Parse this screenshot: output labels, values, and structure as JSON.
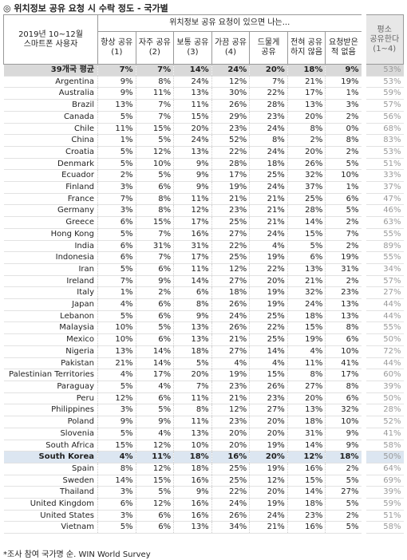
{
  "title": "◎ 위치정보 공유 요청 시 수락 정도 - 국가별",
  "header": {
    "period": "2019년 10~12월",
    "users": "스마트폰 사용자",
    "group_label": "위치정보 공유 요청이 있으면 나는...",
    "columns": [
      [
        "항상 공유",
        "(1)"
      ],
      [
        "자주 공유",
        "(2)"
      ],
      [
        "보통 공유",
        "(3)"
      ],
      [
        "가끔 공유",
        "(4)"
      ],
      [
        "드물게",
        "공유"
      ],
      [
        "전혀 공유",
        "하지 않음"
      ],
      [
        "요청받은",
        "적 없음"
      ]
    ],
    "summary": [
      "평소",
      "공유한다",
      "(1~4)"
    ]
  },
  "table": {
    "rows": [
      [
        "39개국 평균",
        "7%",
        "7%",
        "14%",
        "24%",
        "20%",
        "18%",
        "9%",
        "53%"
      ],
      [
        "Argentina",
        "9%",
        "8%",
        "24%",
        "12%",
        "7%",
        "21%",
        "19%",
        "53%"
      ],
      [
        "Australia",
        "9%",
        "11%",
        "13%",
        "30%",
        "22%",
        "17%",
        "1%",
        "59%"
      ],
      [
        "Brazil",
        "13%",
        "7%",
        "11%",
        "26%",
        "28%",
        "13%",
        "3%",
        "57%"
      ],
      [
        "Canada",
        "5%",
        "7%",
        "15%",
        "29%",
        "23%",
        "20%",
        "2%",
        "56%"
      ],
      [
        "Chile",
        "11%",
        "15%",
        "20%",
        "23%",
        "24%",
        "8%",
        "0%",
        "68%"
      ],
      [
        "China",
        "1%",
        "5%",
        "24%",
        "52%",
        "8%",
        "2%",
        "8%",
        "83%"
      ],
      [
        "Croatia",
        "5%",
        "12%",
        "13%",
        "22%",
        "24%",
        "20%",
        "2%",
        "53%"
      ],
      [
        "Denmark",
        "5%",
        "10%",
        "9%",
        "28%",
        "18%",
        "26%",
        "5%",
        "51%"
      ],
      [
        "Ecuador",
        "2%",
        "5%",
        "9%",
        "17%",
        "25%",
        "32%",
        "10%",
        "33%"
      ],
      [
        "Finland",
        "3%",
        "6%",
        "9%",
        "19%",
        "24%",
        "37%",
        "1%",
        "37%"
      ],
      [
        "France",
        "7%",
        "8%",
        "11%",
        "21%",
        "21%",
        "25%",
        "6%",
        "47%"
      ],
      [
        "Germany",
        "3%",
        "8%",
        "12%",
        "23%",
        "21%",
        "28%",
        "5%",
        "46%"
      ],
      [
        "Greece",
        "6%",
        "15%",
        "17%",
        "25%",
        "21%",
        "14%",
        "2%",
        "63%"
      ],
      [
        "Hong Kong",
        "5%",
        "7%",
        "16%",
        "27%",
        "24%",
        "15%",
        "7%",
        "55%"
      ],
      [
        "India",
        "6%",
        "31%",
        "31%",
        "22%",
        "4%",
        "5%",
        "2%",
        "89%"
      ],
      [
        "Indonesia",
        "6%",
        "7%",
        "17%",
        "25%",
        "19%",
        "6%",
        "19%",
        "55%"
      ],
      [
        "Iran",
        "5%",
        "6%",
        "11%",
        "12%",
        "22%",
        "13%",
        "31%",
        "34%"
      ],
      [
        "Ireland",
        "7%",
        "9%",
        "14%",
        "27%",
        "20%",
        "21%",
        "2%",
        "57%"
      ],
      [
        "Italy",
        "1%",
        "2%",
        "6%",
        "18%",
        "19%",
        "32%",
        "23%",
        "27%"
      ],
      [
        "Japan",
        "4%",
        "6%",
        "8%",
        "26%",
        "19%",
        "24%",
        "13%",
        "44%"
      ],
      [
        "Lebanon",
        "5%",
        "6%",
        "9%",
        "24%",
        "25%",
        "18%",
        "13%",
        "44%"
      ],
      [
        "Malaysia",
        "10%",
        "5%",
        "13%",
        "26%",
        "22%",
        "15%",
        "8%",
        "55%"
      ],
      [
        "Mexico",
        "10%",
        "6%",
        "13%",
        "21%",
        "25%",
        "19%",
        "6%",
        "50%"
      ],
      [
        "Nigeria",
        "13%",
        "14%",
        "18%",
        "27%",
        "14%",
        "4%",
        "10%",
        "72%"
      ],
      [
        "Pakistan",
        "21%",
        "14%",
        "5%",
        "4%",
        "4%",
        "11%",
        "41%",
        "44%"
      ],
      [
        "Palestinian Territories",
        "4%",
        "17%",
        "20%",
        "19%",
        "15%",
        "8%",
        "17%",
        "60%"
      ],
      [
        "Paraguay",
        "5%",
        "4%",
        "7%",
        "23%",
        "26%",
        "27%",
        "8%",
        "39%"
      ],
      [
        "Peru",
        "12%",
        "6%",
        "11%",
        "21%",
        "23%",
        "20%",
        "6%",
        "50%"
      ],
      [
        "Philippines",
        "3%",
        "5%",
        "8%",
        "12%",
        "27%",
        "13%",
        "32%",
        "28%"
      ],
      [
        "Poland",
        "9%",
        "9%",
        "11%",
        "23%",
        "20%",
        "18%",
        "10%",
        "52%"
      ],
      [
        "Slovenia",
        "5%",
        "4%",
        "13%",
        "20%",
        "20%",
        "31%",
        "9%",
        "41%"
      ],
      [
        "South Africa",
        "15%",
        "12%",
        "10%",
        "20%",
        "19%",
        "14%",
        "9%",
        "58%"
      ],
      [
        "South Korea",
        "4%",
        "11%",
        "18%",
        "16%",
        "20%",
        "12%",
        "18%",
        "50%"
      ],
      [
        "Spain",
        "8%",
        "12%",
        "18%",
        "25%",
        "19%",
        "16%",
        "2%",
        "64%"
      ],
      [
        "Sweden",
        "14%",
        "15%",
        "16%",
        "25%",
        "12%",
        "15%",
        "5%",
        "69%"
      ],
      [
        "Thailand",
        "3%",
        "5%",
        "9%",
        "22%",
        "20%",
        "14%",
        "27%",
        "39%"
      ],
      [
        "United Kingdom",
        "6%",
        "12%",
        "16%",
        "24%",
        "19%",
        "18%",
        "5%",
        "59%"
      ],
      [
        "United States",
        "3%",
        "6%",
        "16%",
        "26%",
        "24%",
        "23%",
        "2%",
        "51%"
      ],
      [
        "Vietnam",
        "5%",
        "6%",
        "13%",
        "34%",
        "21%",
        "16%",
        "5%",
        "58%"
      ]
    ]
  },
  "footnote": "*조사 참여 국가명 순. WIN World Survey"
}
